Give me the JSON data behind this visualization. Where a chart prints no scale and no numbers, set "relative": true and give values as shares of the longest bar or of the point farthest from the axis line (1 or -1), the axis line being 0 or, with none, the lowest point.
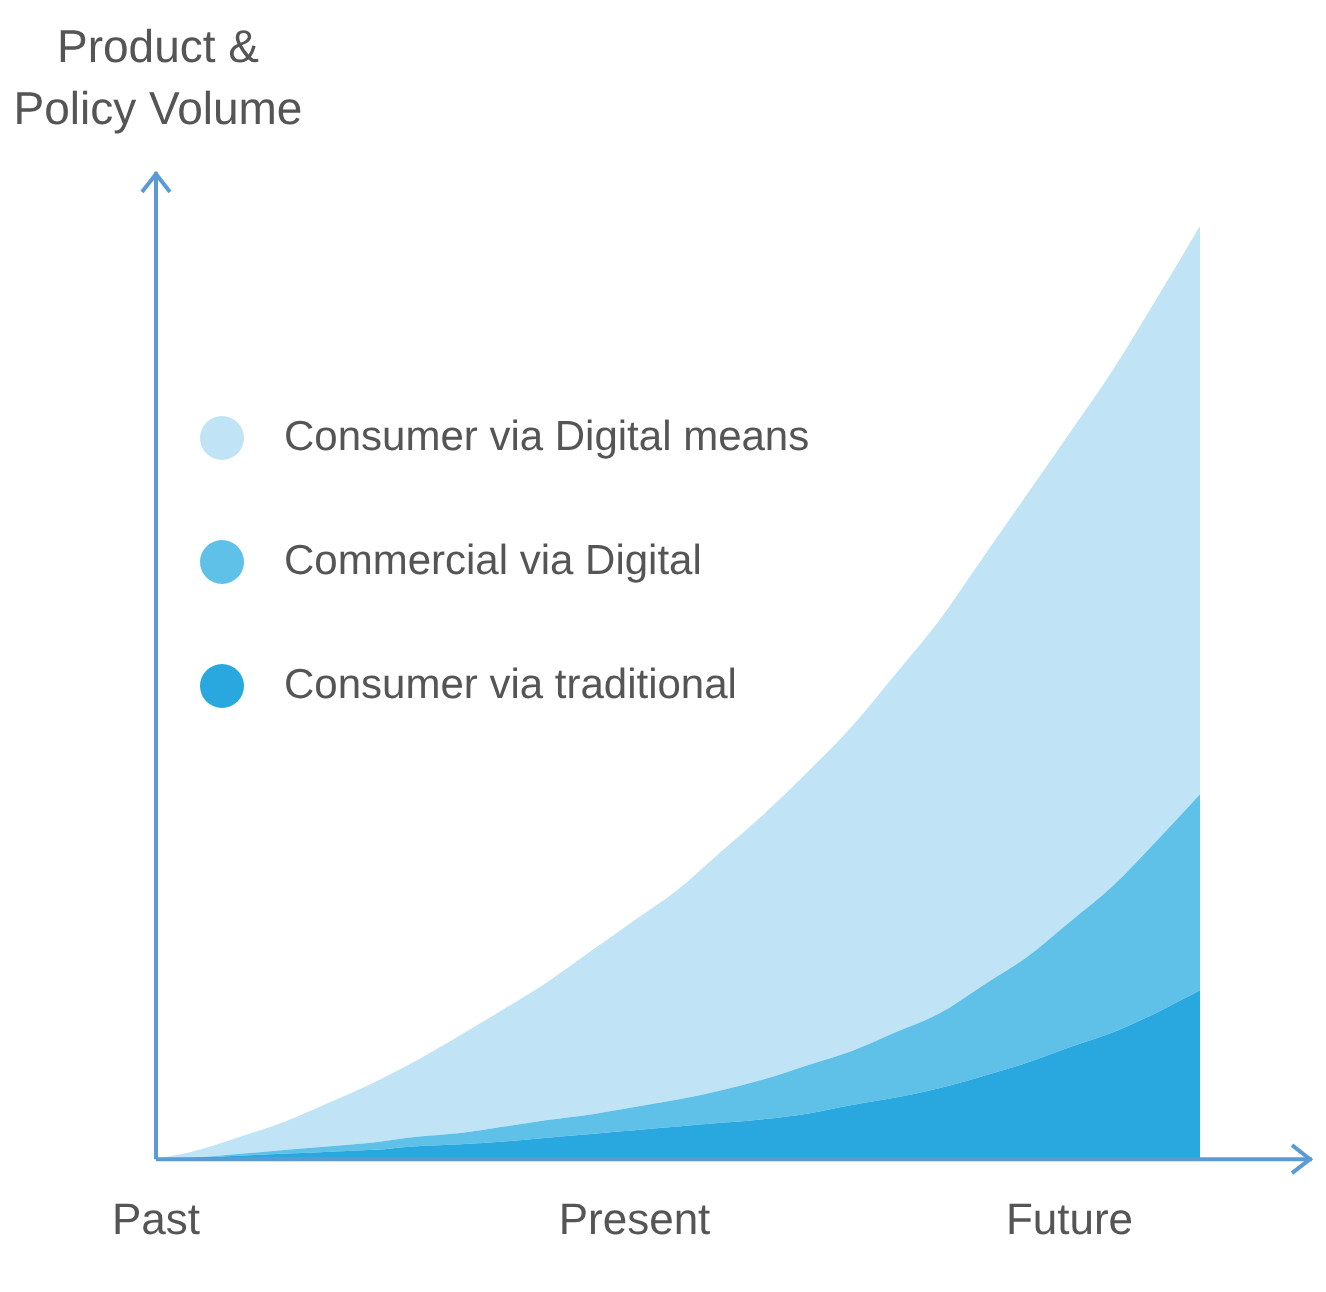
{
  "chart_data": {
    "type": "area",
    "ylabel": "Product & Policy Volume",
    "relative": true,
    "stacked": true,
    "grid": false,
    "legend": "top left",
    "tick_labels": "x",
    "marker": "none",
    "categories": [
      "Past",
      null,
      null,
      null,
      null,
      null,
      null,
      null,
      null,
      null,
      null,
      "Present",
      null,
      null,
      null,
      null,
      null,
      null,
      null,
      null,
      null,
      "Future",
      null,
      null,
      null
    ],
    "series": [
      {
        "name": "Consumer via traditional",
        "color": "#29a8e0",
        "values": [
          0,
          0.002,
          0.004,
          0.006,
          0.008,
          0.01,
          0.014,
          0.016,
          0.019,
          0.023,
          0.027,
          0.031,
          0.035,
          0.039,
          0.043,
          0.049,
          0.058,
          0.066,
          0.076,
          0.089,
          0.103,
          0.12,
          0.136,
          0.157,
          0.181
        ]
      },
      {
        "name": "Commercial via Digital",
        "color": "#5fc0e8",
        "values": [
          0,
          0,
          0.002,
          0.004,
          0.006,
          0.008,
          0.01,
          0.012,
          0.016,
          0.019,
          0.021,
          0.025,
          0.029,
          0.035,
          0.043,
          0.052,
          0.058,
          0.07,
          0.08,
          0.097,
          0.113,
          0.134,
          0.157,
          0.184,
          0.21
        ]
      },
      {
        "name": "Consumer via Digital means",
        "color": "#c0e4f5",
        "values": [
          0,
          0.008,
          0.019,
          0.031,
          0.047,
          0.064,
          0.082,
          0.105,
          0.126,
          0.148,
          0.175,
          0.2,
          0.225,
          0.256,
          0.285,
          0.315,
          0.348,
          0.384,
          0.421,
          0.458,
          0.495,
          0.524,
          0.553,
          0.581,
          0.609
        ]
      }
    ]
  }
}
